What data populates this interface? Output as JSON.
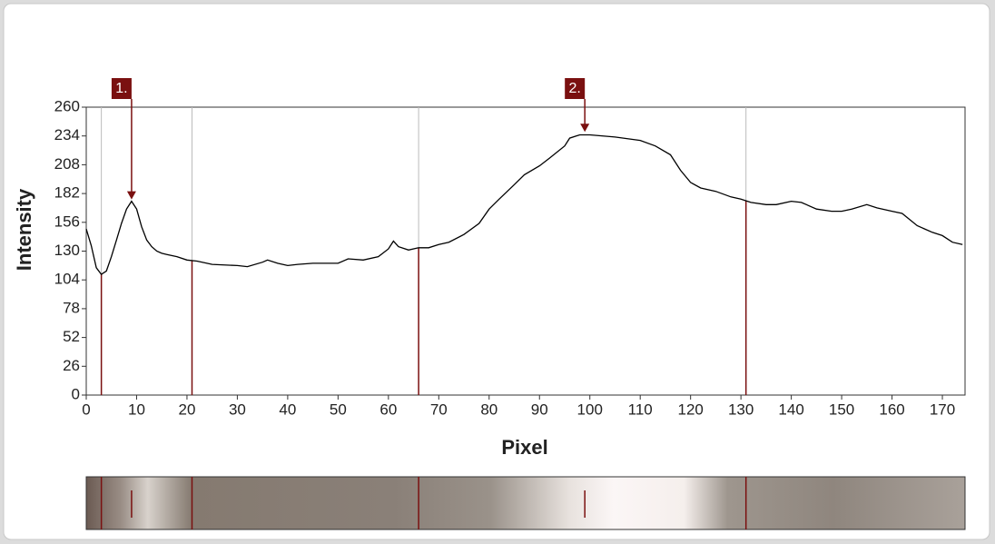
{
  "chart_data": {
    "type": "line",
    "xlabel": "Pixel",
    "ylabel": "Intensity",
    "x": [
      0,
      1,
      2,
      3,
      4,
      5,
      6,
      7,
      8,
      9,
      10,
      11,
      12,
      13,
      14,
      15,
      16,
      18,
      20,
      22,
      25,
      30,
      32,
      35,
      36,
      38,
      40,
      42,
      45,
      50,
      52,
      55,
      58,
      60,
      61,
      62,
      64,
      66,
      68,
      70,
      72,
      75,
      78,
      80,
      82,
      85,
      87,
      90,
      92,
      95,
      96,
      98,
      100,
      105,
      110,
      113,
      116,
      118,
      120,
      122,
      125,
      128,
      130,
      132,
      135,
      137,
      140,
      142,
      145,
      148,
      150,
      152,
      155,
      157,
      160,
      162,
      165,
      168,
      170,
      172,
      174
    ],
    "values": [
      150,
      135,
      115,
      109,
      112,
      125,
      140,
      155,
      168,
      175,
      168,
      152,
      140,
      134,
      130,
      128,
      127,
      125,
      122,
      121,
      118,
      117,
      116,
      120,
      122,
      119,
      117,
      118,
      119,
      119,
      123,
      122,
      125,
      132,
      139,
      134,
      131,
      133,
      133,
      136,
      138,
      145,
      155,
      168,
      177,
      190,
      199,
      207,
      214,
      225,
      232,
      235,
      235,
      233,
      230,
      225,
      217,
      203,
      192,
      187,
      184,
      179,
      177,
      174,
      172,
      172,
      175,
      174,
      168,
      166,
      166,
      168,
      172,
      169,
      166,
      164,
      153,
      147,
      144,
      138,
      136
    ],
    "color": "#000000",
    "xlim": [
      0,
      174.5
    ],
    "ylim": [
      0,
      260
    ],
    "xticks": [
      0,
      10,
      20,
      30,
      40,
      50,
      60,
      70,
      80,
      90,
      100,
      110,
      120,
      130,
      140,
      150,
      160,
      170
    ],
    "yticks": [
      0,
      26,
      52,
      78,
      104,
      130,
      156,
      182,
      208,
      234,
      260
    ],
    "markers": [
      3,
      21,
      66,
      131
    ],
    "marker_color": "#7a1010",
    "annotations": [
      {
        "label": "1.",
        "x": 9,
        "y": 175
      },
      {
        "label": "2.",
        "x": 99,
        "y": 236
      }
    ]
  }
}
